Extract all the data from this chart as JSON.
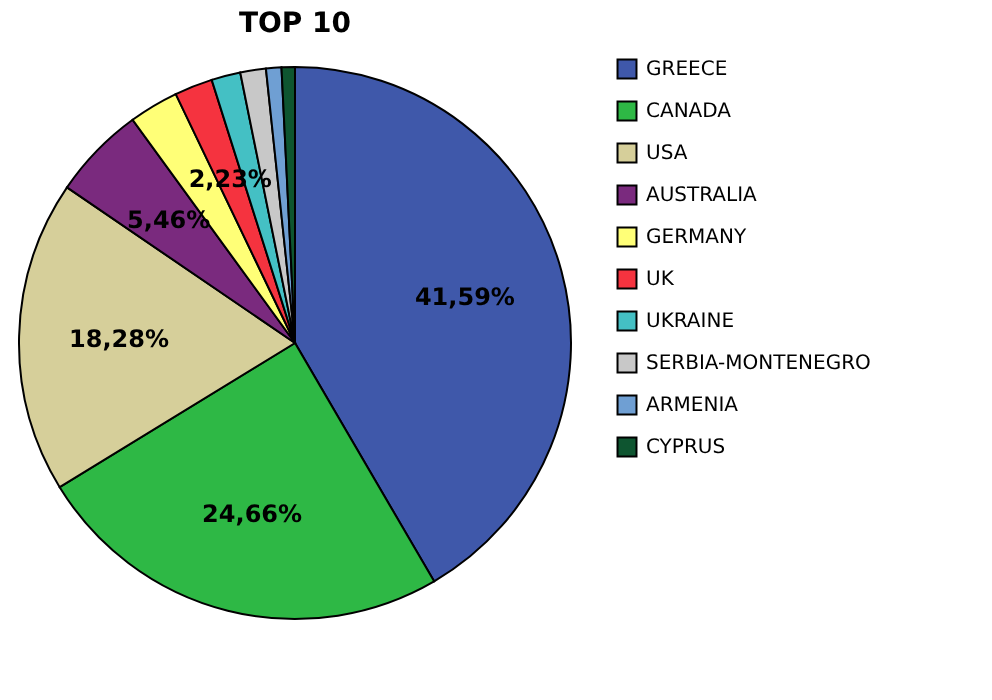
{
  "chart_data": {
    "type": "pie",
    "title": "TOP 10",
    "categories": [
      "GREECE",
      "CANADA",
      "USA",
      "AUSTRALIA",
      "GERMANY",
      "UK",
      "UKRAINE",
      "SERBIA-MONTENEGRO",
      "ARMENIA",
      "CYPRUS"
    ],
    "values": [
      41.59,
      24.66,
      18.28,
      5.46,
      2.9,
      2.23,
      1.7,
      1.5,
      0.9,
      0.78
    ],
    "colors": [
      "#3f58aa",
      "#2eb845",
      "#d6cf9a",
      "#7a2a7e",
      "#ffff77",
      "#f5333f",
      "#44c0c4",
      "#c8c8c8",
      "#6f9fd3",
      "#0e5530"
    ],
    "value_labels": [
      "41,59%",
      "24,66%",
      "18,28%",
      "5,46%",
      null,
      "2,23%",
      null,
      null,
      null,
      null
    ],
    "legend": "right"
  }
}
